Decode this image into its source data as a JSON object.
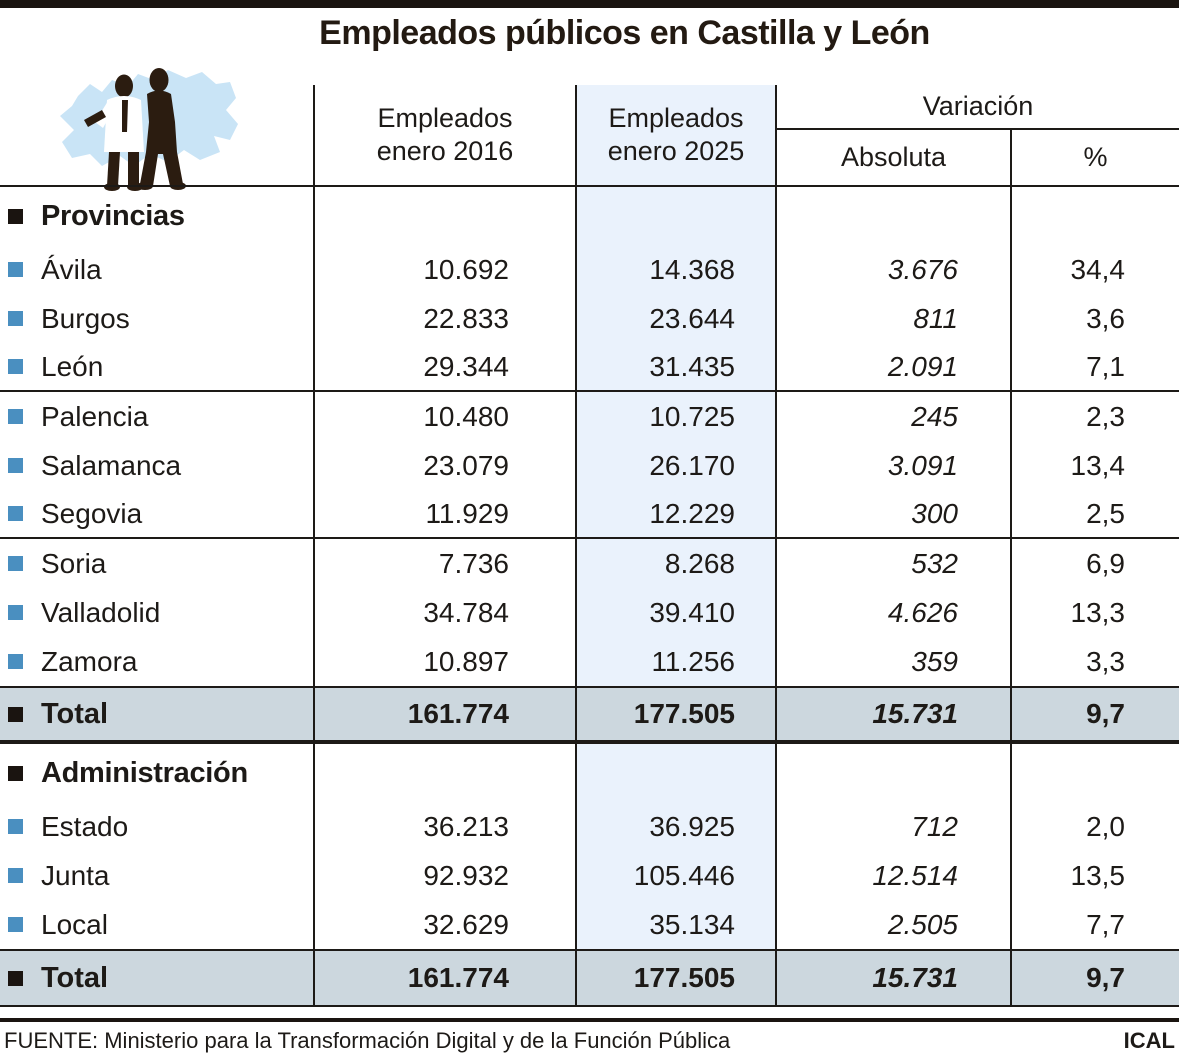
{
  "title": "Empleados públicos en Castilla y León",
  "header": {
    "col_2016": [
      "Empleados",
      "enero 2016"
    ],
    "col_2025": [
      "Empleados",
      "enero 2025"
    ],
    "variacion": "Variación",
    "absoluta": "Absoluta",
    "pct": "%"
  },
  "sections": [
    {
      "name": "Provincias",
      "rows": [
        {
          "label": "Ávila",
          "e2016": "10.692",
          "e2025": "14.368",
          "abs": "3.676",
          "pct": "34,4"
        },
        {
          "label": "Burgos",
          "e2016": "22.833",
          "e2025": "23.644",
          "abs": "811",
          "pct": "3,6"
        },
        {
          "label": "León",
          "e2016": "29.344",
          "e2025": "31.435",
          "abs": "2.091",
          "pct": "7,1",
          "sep_after": true
        },
        {
          "label": "Palencia",
          "e2016": "10.480",
          "e2025": "10.725",
          "abs": "245",
          "pct": "2,3"
        },
        {
          "label": "Salamanca",
          "e2016": "23.079",
          "e2025": "26.170",
          "abs": "3.091",
          "pct": "13,4"
        },
        {
          "label": "Segovia",
          "e2016": "11.929",
          "e2025": "12.229",
          "abs": "300",
          "pct": "2,5",
          "sep_after": true
        },
        {
          "label": "Soria",
          "e2016": "7.736",
          "e2025": "8.268",
          "abs": "532",
          "pct": "6,9"
        },
        {
          "label": "Valladolid",
          "e2016": "34.784",
          "e2025": "39.410",
          "abs": "4.626",
          "pct": "13,3"
        },
        {
          "label": "Zamora",
          "e2016": "10.897",
          "e2025": "11.256",
          "abs": "359",
          "pct": "3,3"
        }
      ],
      "total": {
        "label": "Total",
        "e2016": "161.774",
        "e2025": "177.505",
        "abs": "15.731",
        "pct": "9,7"
      }
    },
    {
      "name": "Administración",
      "rows": [
        {
          "label": "Estado",
          "e2016": "36.213",
          "e2025": "36.925",
          "abs": "712",
          "pct": "2,0"
        },
        {
          "label": "Junta",
          "e2016": "92.932",
          "e2025": "105.446",
          "abs": "12.514",
          "pct": "13,5"
        },
        {
          "label": "Local",
          "e2016": "32.629",
          "e2025": "35.134",
          "abs": "2.505",
          "pct": "7,7"
        }
      ],
      "total": {
        "label": "Total",
        "e2016": "161.774",
        "e2025": "177.505",
        "abs": "15.731",
        "pct": "9,7"
      }
    }
  ],
  "footer": {
    "source": "FUENTE: Ministerio para la Transformación Digital y de la Función Pública",
    "credit": "ICAL"
  },
  "colors": {
    "ink": "#1d1a17",
    "top_bar": "#1a1410",
    "item_bullet_blue": "#4a8fc0",
    "highlight_column": "#eaf2fc",
    "total_row_bg": "#ccd7de",
    "map_blue": "#c9e4f6",
    "silhouette": "#2b1c10"
  },
  "icons": {
    "illustration": "people-on-castilla-y-leon-map-icon"
  },
  "chart_data": {
    "type": "table",
    "title": "Empleados públicos en Castilla y León",
    "columns": [
      "",
      "Empleados enero 2016",
      "Empleados enero 2025",
      "Variación absoluta",
      "Variación %"
    ],
    "sections": [
      {
        "name": "Provincias",
        "rows": [
          [
            "Ávila",
            10692,
            14368,
            3676,
            34.4
          ],
          [
            "Burgos",
            22833,
            23644,
            811,
            3.6
          ],
          [
            "León",
            29344,
            31435,
            2091,
            7.1
          ],
          [
            "Palencia",
            10480,
            10725,
            245,
            2.3
          ],
          [
            "Salamanca",
            23079,
            26170,
            3091,
            13.4
          ],
          [
            "Segovia",
            11929,
            12229,
            300,
            2.5
          ],
          [
            "Soria",
            7736,
            8268,
            532,
            6.9
          ],
          [
            "Valladolid",
            34784,
            39410,
            4626,
            13.3
          ],
          [
            "Zamora",
            10897,
            11256,
            359,
            3.3
          ]
        ],
        "total": [
          "Total",
          161774,
          177505,
          15731,
          9.7
        ]
      },
      {
        "name": "Administración",
        "rows": [
          [
            "Estado",
            36213,
            36925,
            712,
            2.0
          ],
          [
            "Junta",
            92932,
            105446,
            12514,
            13.5
          ],
          [
            "Local",
            32629,
            35134,
            2505,
            7.7
          ]
        ],
        "total": [
          "Total",
          161774,
          177505,
          15731,
          9.7
        ]
      }
    ],
    "source": "FUENTE: Ministerio para la Transformación Digital y de la Función Pública",
    "credit": "ICAL"
  }
}
